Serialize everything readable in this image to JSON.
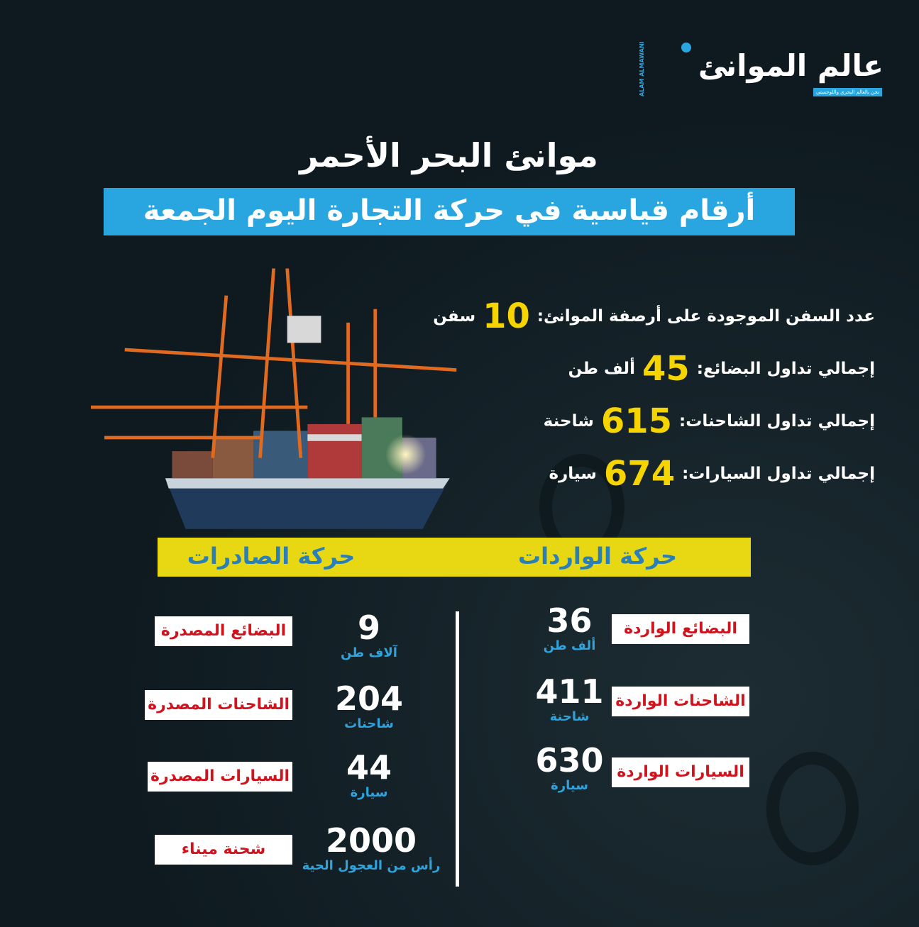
{
  "logo": {
    "arabic": "عالم الموانئ",
    "latin": "ALAM ALMAWANI",
    "tagline": "نحن بالعالم البحري واللوجستي"
  },
  "title": "موانئ البحر الأحمر",
  "subtitle": "أرقام قياسية في حركة التجارة اليوم الجمعة",
  "stats": [
    {
      "label": "عدد السفن الموجودة على أرصفة الموانئ:",
      "value": "10",
      "unit": "سفن"
    },
    {
      "label": "إجمالي تداول البضائع:",
      "value": "45",
      "unit": "ألف طن"
    },
    {
      "label": "إجمالي تداول الشاحنات:",
      "value": "615",
      "unit": "شاحنة"
    },
    {
      "label": "إجمالي تداول السيارات:",
      "value": "674",
      "unit": "سيارة"
    }
  ],
  "imports": {
    "heading": "حركة الواردات",
    "items": [
      {
        "label": "البضائع الواردة",
        "value": "36",
        "unit": "ألف طن"
      },
      {
        "label": "الشاحنات الواردة",
        "value": "411",
        "unit": "شاحنة"
      },
      {
        "label": "السيارات الواردة",
        "value": "630",
        "unit": "سيارة"
      }
    ]
  },
  "exports": {
    "heading": "حركة الصادرات",
    "items": [
      {
        "label": "البضائع المصدرة",
        "value": "9",
        "unit": "آلاف طن"
      },
      {
        "label": "الشاحنات المصدرة",
        "value": "204",
        "unit": "شاحنات"
      },
      {
        "label": "السيارات المصدرة",
        "value": "44",
        "unit": "سيارة"
      },
      {
        "label": "شحنة ميناء",
        "value": "2000",
        "unit": "رأس من العجول الحية"
      }
    ]
  },
  "colors": {
    "background": "#0e1a20",
    "accent_blue": "#29a6e0",
    "accent_yellow": "#f5d400",
    "label_red": "#d0141e"
  }
}
